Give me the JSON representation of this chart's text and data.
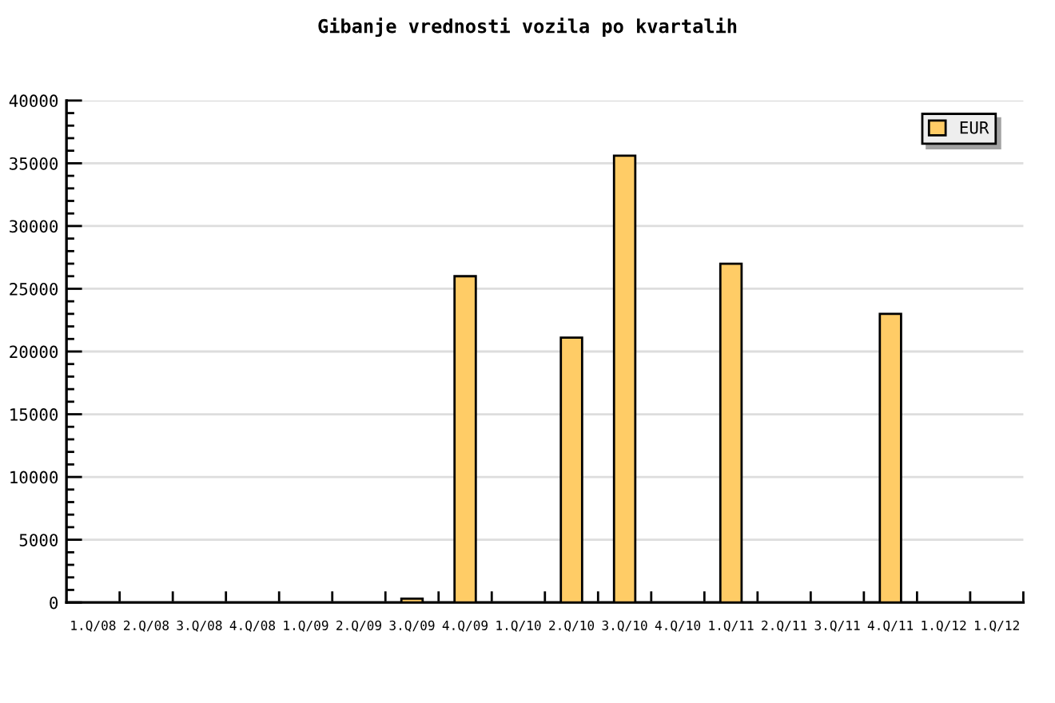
{
  "chart_data": {
    "type": "bar",
    "title": "Gibanje vrednosti vozila po kvartalih",
    "categories": [
      "1.Q/08",
      "2.Q/08",
      "3.Q/08",
      "4.Q/08",
      "1.Q/09",
      "2.Q/09",
      "3.Q/09",
      "4.Q/09",
      "1.Q/10",
      "2.Q/10",
      "3.Q/10",
      "4.Q/10",
      "1.Q/11",
      "2.Q/11",
      "3.Q/11",
      "4.Q/11",
      "1.Q/12",
      "1.Q/12"
    ],
    "series": [
      {
        "name": "EUR",
        "color": "#ffcc66",
        "values": [
          null,
          null,
          null,
          null,
          null,
          null,
          300,
          26000,
          null,
          21100,
          35600,
          null,
          27000,
          null,
          null,
          23000,
          null,
          null
        ]
      }
    ],
    "ylim": [
      0,
      40000
    ],
    "yticks": [
      0,
      5000,
      10000,
      15000,
      20000,
      25000,
      30000,
      35000,
      40000
    ],
    "grid": "y",
    "legend": "top right"
  }
}
